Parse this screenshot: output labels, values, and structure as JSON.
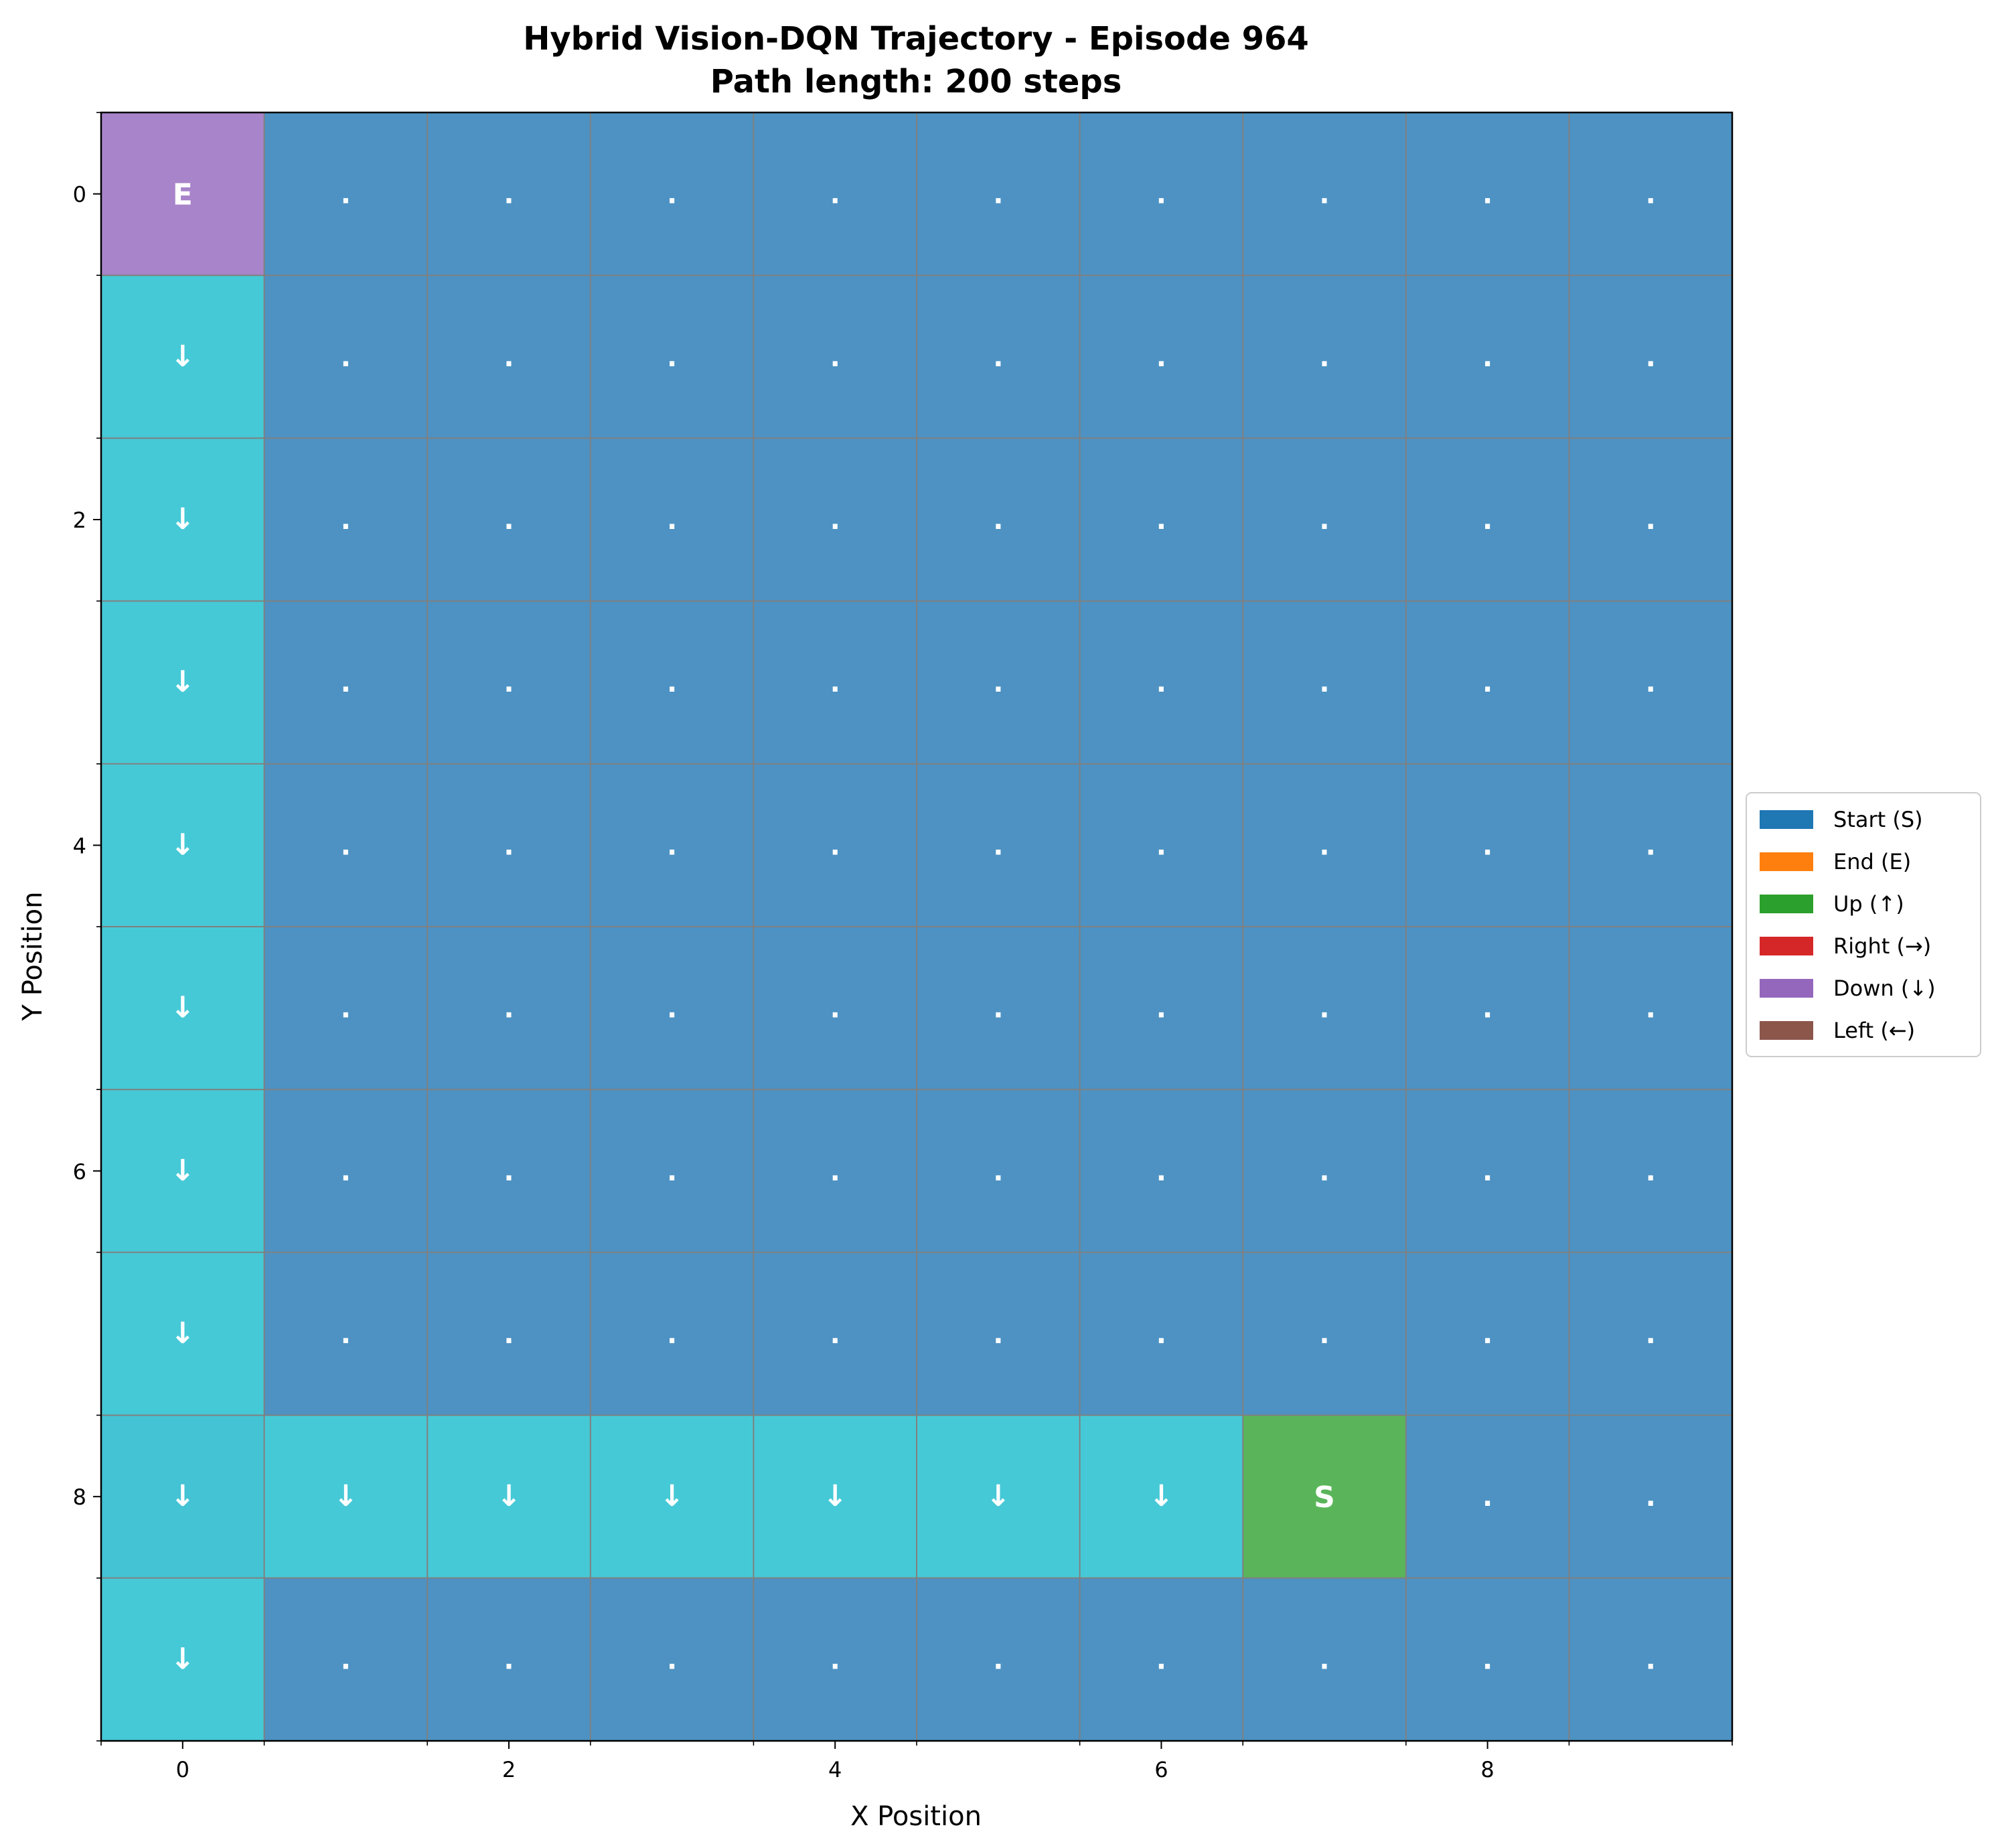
{
  "chart_data": {
    "type": "heatmap",
    "title_line1": "Hybrid Vision-DQN Trajectory - Episode 964",
    "title_line2": "Path length: 200 steps",
    "xlabel": "X Position",
    "ylabel": "Y Position",
    "x_ticks": [
      "0",
      "2",
      "4",
      "6",
      "8"
    ],
    "y_ticks": [
      "0",
      "2",
      "4",
      "6",
      "8"
    ],
    "grid_size": [
      10,
      10
    ],
    "y_axis_inverted": true,
    "grid": true,
    "cell_colors": {
      "empty": "#4d92c3",
      "path": "#46c9d6",
      "path_start_column": "#43c3d4",
      "start": "#5ab55a",
      "end": "#a884ca"
    },
    "cells": [
      [
        "E",
        ".",
        ".",
        ".",
        ".",
        ".",
        ".",
        ".",
        ".",
        "."
      ],
      [
        "↓",
        ".",
        ".",
        ".",
        ".",
        ".",
        ".",
        ".",
        ".",
        "."
      ],
      [
        "↓",
        ".",
        ".",
        ".",
        ".",
        ".",
        ".",
        ".",
        ".",
        "."
      ],
      [
        "↓",
        ".",
        ".",
        ".",
        ".",
        ".",
        ".",
        ".",
        ".",
        "."
      ],
      [
        "↓",
        ".",
        ".",
        ".",
        ".",
        ".",
        ".",
        ".",
        ".",
        "."
      ],
      [
        "↓",
        ".",
        ".",
        ".",
        ".",
        ".",
        ".",
        ".",
        ".",
        "."
      ],
      [
        "↓",
        ".",
        ".",
        ".",
        ".",
        ".",
        ".",
        ".",
        ".",
        "."
      ],
      [
        "↓",
        ".",
        ".",
        ".",
        ".",
        ".",
        ".",
        ".",
        ".",
        "."
      ],
      [
        "↓",
        "↓",
        "↓",
        "↓",
        "↓",
        "↓",
        "↓",
        "S",
        ".",
        "."
      ],
      [
        "↓",
        ".",
        ".",
        ".",
        ".",
        ".",
        ".",
        ".",
        ".",
        "."
      ]
    ],
    "legend": {
      "placement": "right",
      "entries": [
        {
          "label": "Start (S)",
          "color": "#1f77b4"
        },
        {
          "label": "End (E)",
          "color": "#ff7f0e"
        },
        {
          "label": "Up (↑)",
          "color": "#2ca02c"
        },
        {
          "label": "Right (→)",
          "color": "#d62728"
        },
        {
          "label": "Down (↓)",
          "color": "#9467bd"
        },
        {
          "label": "Left (←)",
          "color": "#8c564b"
        }
      ]
    }
  }
}
